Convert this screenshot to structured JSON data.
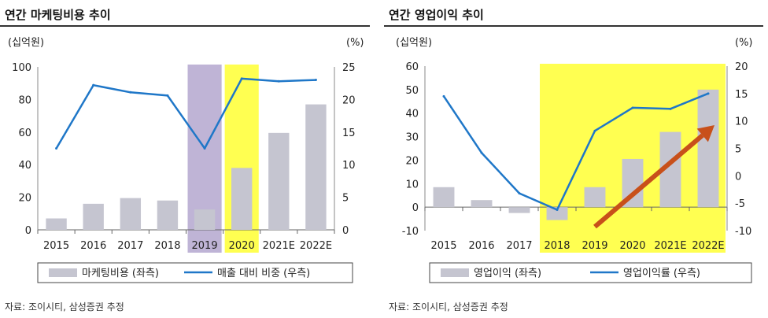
{
  "charts": [
    {
      "title": "연간 마케팅비용 추이",
      "source": "자료: 조이시티, 삼성증권 추정",
      "chart_data": {
        "type": "bar",
        "title": "연간 마케팅비용 추이",
        "left_unit": "(십억원)",
        "right_unit": "(%)",
        "categories": [
          "2015",
          "2016",
          "2017",
          "2018",
          "2019",
          "2020",
          "2021E",
          "2022E"
        ],
        "ylim": [
          0,
          100
        ],
        "left_ticks": [
          0,
          20,
          40,
          60,
          80,
          100
        ],
        "y2lim": [
          0,
          25
        ],
        "right_ticks": [
          0,
          5,
          10,
          15,
          20,
          25
        ],
        "grid": false,
        "legend_position": "bottom",
        "series": [
          {
            "name": "마케팅비용 (좌측)",
            "kind": "bar",
            "axis": "left",
            "color": "#c5c5d0",
            "values": [
              7,
              16,
              19.5,
              18,
              12.5,
              38,
              59.5,
              77
            ]
          },
          {
            "name": "매출 대비 비중 (우측)",
            "kind": "line",
            "axis": "right",
            "color": "#1f77c8",
            "values": [
              12.5,
              22.2,
              21.1,
              20.6,
              12.5,
              23.2,
              22.8,
              23.0
            ]
          }
        ],
        "highlights": [
          {
            "from": "2019",
            "to": "2019",
            "color": "#b4a7cf"
          },
          {
            "from": "2020",
            "to": "2020",
            "color": "#ffff33"
          }
        ]
      }
    },
    {
      "title": "연간 영업이익 추이",
      "source": "자료: 조이시티, 삼성증권 추정",
      "chart_data": {
        "type": "bar",
        "title": "연간 영업이익 추이",
        "left_unit": "(십억원)",
        "right_unit": "(%)",
        "categories": [
          "2015",
          "2016",
          "2017",
          "2018",
          "2019",
          "2020",
          "2021E",
          "2022E"
        ],
        "ylim": [
          -10,
          60
        ],
        "left_ticks": [
          -10,
          0,
          10,
          20,
          30,
          40,
          50,
          60
        ],
        "y2lim": [
          -10,
          20
        ],
        "right_ticks": [
          -10,
          -5,
          0,
          5,
          10,
          15,
          20
        ],
        "grid": false,
        "legend_position": "bottom",
        "series": [
          {
            "name": "영업이익 (좌측)",
            "kind": "bar",
            "axis": "left",
            "color": "#c5c5d0",
            "values": [
              8.5,
              3,
              -2.5,
              -5.5,
              8.5,
              20.5,
              32,
              50
            ]
          },
          {
            "name": "영업이익률 (우측)",
            "kind": "line",
            "axis": "right",
            "color": "#1f77c8",
            "values": [
              14.5,
              4.2,
              -3.2,
              -6.2,
              8.2,
              12.4,
              12.2,
              15.0
            ]
          }
        ],
        "highlights": [
          {
            "from": "2018",
            "to": "2022E",
            "color": "#ffff33"
          }
        ],
        "annotations": [
          {
            "type": "trend-arrow",
            "from": "2019",
            "to": "2022E",
            "color": "#c8501a"
          }
        ]
      }
    }
  ]
}
